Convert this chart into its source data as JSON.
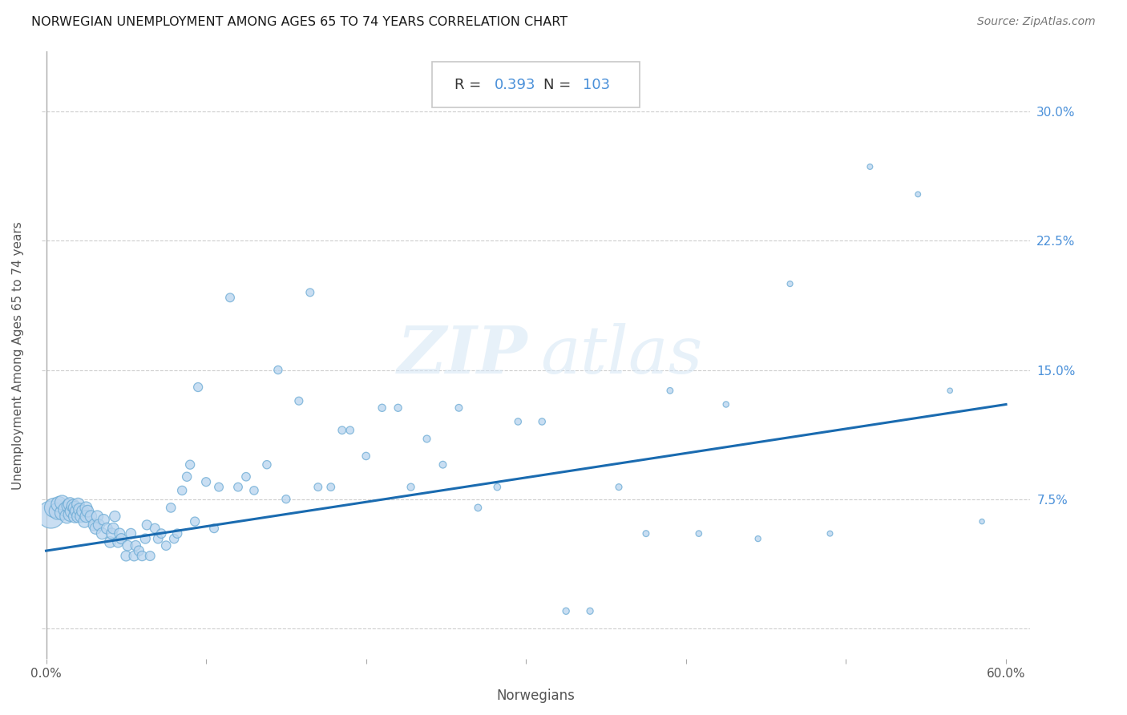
{
  "title": "NORWEGIAN UNEMPLOYMENT AMONG AGES 65 TO 74 YEARS CORRELATION CHART",
  "source": "Source: ZipAtlas.com",
  "xlabel": "Norwegians",
  "ylabel": "Unemployment Among Ages 65 to 74 years",
  "R": 0.393,
  "N": 103,
  "xlim": [
    -0.003,
    0.615
  ],
  "ylim": [
    -0.018,
    0.335
  ],
  "xtick_positions": [
    0.0,
    0.1,
    0.2,
    0.3,
    0.4,
    0.5,
    0.6
  ],
  "xticklabels": [
    "0.0%",
    "",
    "",
    "",
    "",
    "",
    "60.0%"
  ],
  "ytick_positions": [
    0.0,
    0.075,
    0.15,
    0.225,
    0.3
  ],
  "yticklabels": [
    "",
    "7.5%",
    "15.0%",
    "22.5%",
    "30.0%"
  ],
  "dot_color": "#b8d4ee",
  "dot_edge_color": "#6aaad4",
  "line_color": "#1a6bb0",
  "background_color": "#ffffff",
  "grid_color": "#c8c8c8",
  "title_color": "#1a1a1a",
  "source_color": "#777777",
  "annotation_color": "#4a90d9",
  "annotation_label_color": "#333333",
  "scatter_x": [
    0.003,
    0.005,
    0.007,
    0.008,
    0.01,
    0.01,
    0.012,
    0.013,
    0.014,
    0.015,
    0.015,
    0.016,
    0.017,
    0.018,
    0.018,
    0.019,
    0.02,
    0.02,
    0.021,
    0.022,
    0.023,
    0.024,
    0.025,
    0.025,
    0.026,
    0.028,
    0.03,
    0.031,
    0.032,
    0.033,
    0.035,
    0.036,
    0.038,
    0.04,
    0.041,
    0.042,
    0.043,
    0.045,
    0.046,
    0.047,
    0.05,
    0.051,
    0.053,
    0.055,
    0.056,
    0.058,
    0.06,
    0.062,
    0.063,
    0.065,
    0.068,
    0.07,
    0.072,
    0.075,
    0.078,
    0.08,
    0.082,
    0.085,
    0.088,
    0.09,
    0.093,
    0.095,
    0.1,
    0.105,
    0.108,
    0.115,
    0.12,
    0.125,
    0.13,
    0.138,
    0.145,
    0.15,
    0.158,
    0.165,
    0.17,
    0.178,
    0.185,
    0.19,
    0.2,
    0.21,
    0.22,
    0.228,
    0.238,
    0.248,
    0.258,
    0.27,
    0.282,
    0.295,
    0.31,
    0.325,
    0.34,
    0.358,
    0.375,
    0.39,
    0.408,
    0.425,
    0.445,
    0.465,
    0.49,
    0.515,
    0.545,
    0.565,
    0.585
  ],
  "scatter_y": [
    0.066,
    0.07,
    0.068,
    0.072,
    0.067,
    0.073,
    0.069,
    0.065,
    0.071,
    0.066,
    0.072,
    0.068,
    0.071,
    0.065,
    0.07,
    0.068,
    0.065,
    0.072,
    0.069,
    0.065,
    0.068,
    0.062,
    0.07,
    0.065,
    0.068,
    0.065,
    0.06,
    0.058,
    0.065,
    0.06,
    0.055,
    0.063,
    0.058,
    0.05,
    0.055,
    0.058,
    0.065,
    0.05,
    0.055,
    0.052,
    0.042,
    0.048,
    0.055,
    0.042,
    0.048,
    0.045,
    0.042,
    0.052,
    0.06,
    0.042,
    0.058,
    0.052,
    0.055,
    0.048,
    0.07,
    0.052,
    0.055,
    0.08,
    0.088,
    0.095,
    0.062,
    0.14,
    0.085,
    0.058,
    0.082,
    0.192,
    0.082,
    0.088,
    0.08,
    0.095,
    0.15,
    0.075,
    0.132,
    0.195,
    0.082,
    0.082,
    0.115,
    0.115,
    0.1,
    0.128,
    0.128,
    0.082,
    0.11,
    0.095,
    0.128,
    0.07,
    0.082,
    0.12,
    0.12,
    0.01,
    0.01,
    0.082,
    0.055,
    0.138,
    0.055,
    0.13,
    0.052,
    0.2,
    0.055,
    0.268,
    0.252,
    0.138,
    0.062
  ],
  "scatter_sizes_raw": [
    500,
    250,
    180,
    160,
    140,
    140,
    130,
    130,
    120,
    120,
    120,
    115,
    115,
    110,
    110,
    108,
    105,
    105,
    102,
    100,
    100,
    98,
    95,
    95,
    92,
    90,
    90,
    88,
    88,
    85,
    85,
    82,
    80,
    80,
    78,
    78,
    76,
    75,
    74,
    72,
    70,
    70,
    68,
    68,
    66,
    65,
    64,
    63,
    62,
    60,
    60,
    59,
    58,
    57,
    57,
    56,
    56,
    55,
    55,
    54,
    54,
    53,
    52,
    51,
    50,
    50,
    49,
    48,
    47,
    46,
    45,
    44,
    43,
    42,
    41,
    40,
    40,
    39,
    38,
    37,
    36,
    35,
    34,
    33,
    33,
    32,
    31,
    30,
    30,
    29,
    28,
    27,
    26,
    25,
    24,
    23,
    22,
    21,
    20,
    20,
    19,
    18,
    17
  ]
}
